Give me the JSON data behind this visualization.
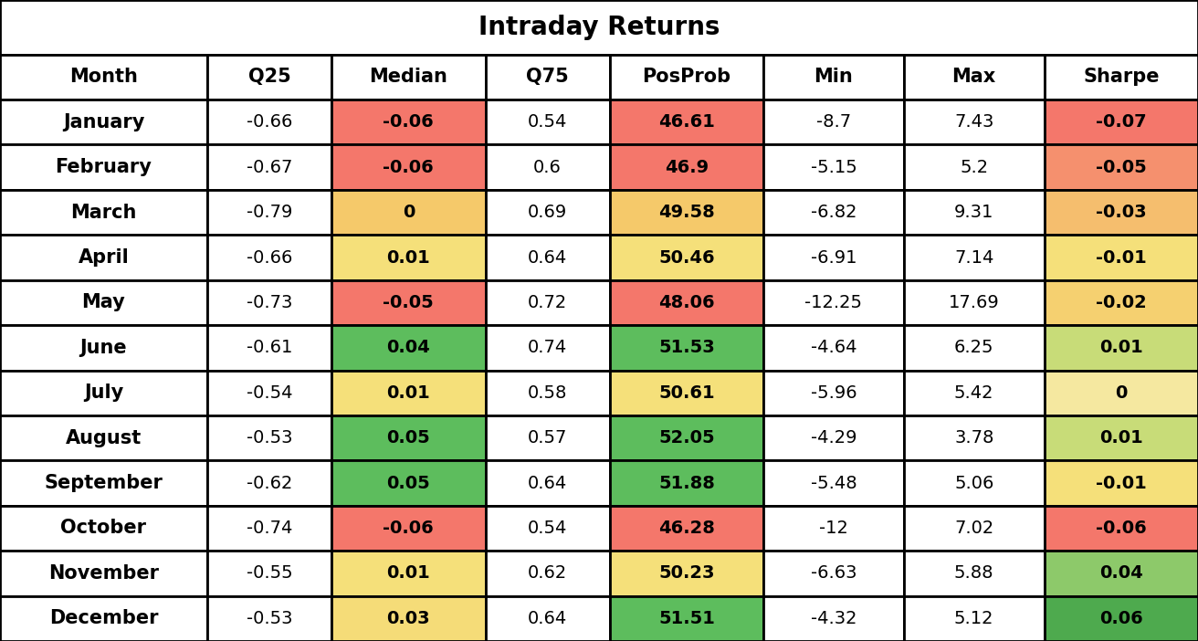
{
  "title": "Intraday Returns",
  "columns": [
    "Month",
    "Q25",
    "Median",
    "Q75",
    "PosProb",
    "Min",
    "Max",
    "Sharpe"
  ],
  "rows": [
    [
      "January",
      "-0.66",
      "-0.06",
      "0.54",
      "46.61",
      "-8.7",
      "7.43",
      "-0.07"
    ],
    [
      "February",
      "-0.67",
      "-0.06",
      "0.6",
      "46.9",
      "-5.15",
      "5.2",
      "-0.05"
    ],
    [
      "March",
      "-0.79",
      "0",
      "0.69",
      "49.58",
      "-6.82",
      "9.31",
      "-0.03"
    ],
    [
      "April",
      "-0.66",
      "0.01",
      "0.64",
      "50.46",
      "-6.91",
      "7.14",
      "-0.01"
    ],
    [
      "May",
      "-0.73",
      "-0.05",
      "0.72",
      "48.06",
      "-12.25",
      "17.69",
      "-0.02"
    ],
    [
      "June",
      "-0.61",
      "0.04",
      "0.74",
      "51.53",
      "-4.64",
      "6.25",
      "0.01"
    ],
    [
      "July",
      "-0.54",
      "0.01",
      "0.58",
      "50.61",
      "-5.96",
      "5.42",
      "0"
    ],
    [
      "August",
      "-0.53",
      "0.05",
      "0.57",
      "52.05",
      "-4.29",
      "3.78",
      "0.01"
    ],
    [
      "September",
      "-0.62",
      "0.05",
      "0.64",
      "51.88",
      "-5.48",
      "5.06",
      "-0.01"
    ],
    [
      "October",
      "-0.74",
      "-0.06",
      "0.54",
      "46.28",
      "-12",
      "7.02",
      "-0.06"
    ],
    [
      "November",
      "-0.55",
      "0.01",
      "0.62",
      "50.23",
      "-6.63",
      "5.88",
      "0.04"
    ],
    [
      "December",
      "-0.53",
      "0.03",
      "0.64",
      "51.51",
      "-4.32",
      "5.12",
      "0.06"
    ]
  ],
  "median_colors": [
    "#F4776B",
    "#F4776B",
    "#F5C96A",
    "#F5E07A",
    "#F4776B",
    "#5DBD5D",
    "#F5E07A",
    "#5DBD5D",
    "#5DBD5D",
    "#F4776B",
    "#F5E07A",
    "#F5DC78"
  ],
  "posProb_colors": [
    "#F4776B",
    "#F4776B",
    "#F5C96A",
    "#F5E07A",
    "#F4776B",
    "#5DBD5D",
    "#F5E07A",
    "#5DBD5D",
    "#5DBD5D",
    "#F4776B",
    "#F5E07A",
    "#5DBD5D"
  ],
  "sharpe_colors": [
    "#F4776B",
    "#F5906E",
    "#F5BE6E",
    "#F5E07A",
    "#F5D070",
    "#C8DC78",
    "#F5E8A0",
    "#C8DC78",
    "#F5E07A",
    "#F4776B",
    "#8DC96A",
    "#4EAA4E"
  ],
  "background_color": "#FFFFFF",
  "title_fontsize": 20,
  "header_fontsize": 15,
  "cell_fontsize": 14,
  "month_fontsize": 15
}
